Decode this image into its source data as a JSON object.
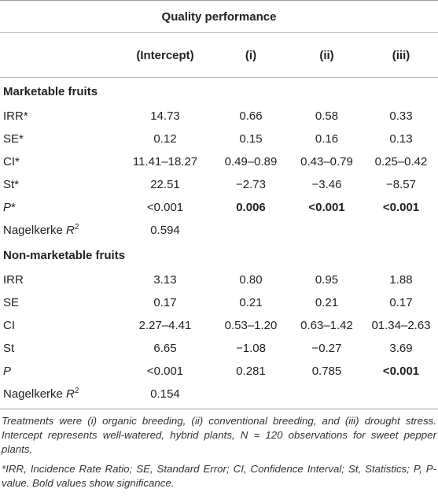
{
  "table": {
    "title": "Quality performance",
    "headers": [
      "",
      "(Intercept)",
      "(i)",
      "(ii)",
      "(iii)"
    ],
    "sections": [
      {
        "name": "Marketable fruits",
        "rows": [
          {
            "label": "IRR*",
            "values": [
              "14.73",
              "0.66",
              "0.58",
              "0.33"
            ]
          },
          {
            "label": "SE*",
            "values": [
              "0.12",
              "0.15",
              "0.16",
              "0.13"
            ]
          },
          {
            "label": "CI*",
            "values": [
              "11.41–18.27",
              "0.49–0.89",
              "0.43–0.79",
              "0.25–0.42"
            ]
          },
          {
            "label": "St*",
            "values": [
              "22.51",
              "−2.73",
              "−3.46",
              "−8.57"
            ]
          },
          {
            "label_main": "P",
            "label_suffix": "*",
            "values": [
              "<0.001",
              "0.006",
              "<0.001",
              "<0.001"
            ],
            "bold": [
              false,
              true,
              true,
              true
            ]
          },
          {
            "label_main": "Nagelkerke ",
            "label_italic": "R",
            "label_sup": "2",
            "values": [
              "0.594",
              "",
              "",
              ""
            ]
          }
        ]
      },
      {
        "name": "Non-marketable fruits",
        "rows": [
          {
            "label": "IRR",
            "values": [
              "3.13",
              "0.80",
              "0.95",
              "1.88"
            ]
          },
          {
            "label": "SE",
            "values": [
              "0.17",
              "0.21",
              "0.21",
              "0.17"
            ]
          },
          {
            "label": "CI",
            "values": [
              "2.27–4.41",
              "0.53–1.20",
              "0.63–1.42",
              "01.34–2.63"
            ]
          },
          {
            "label": "St",
            "values": [
              "6.65",
              "−1.08",
              "−0.27",
              "3.69"
            ]
          },
          {
            "label_main": "P",
            "label_suffix": "",
            "values": [
              "<0.001",
              "0.281",
              "0.785",
              "<0.001"
            ],
            "bold": [
              false,
              false,
              false,
              true
            ]
          },
          {
            "label_main": "Nagelkerke ",
            "label_italic": "R",
            "label_sup": "2",
            "values": [
              "0.154",
              "",
              "",
              ""
            ]
          }
        ]
      }
    ]
  },
  "notes": {
    "note1": "Treatments were (i) organic breeding, (ii) conventional breeding, and (iii) drought stress. Intercept represents well-watered, hybrid plants, N = 120 observations for sweet pepper plants.",
    "note2": "*IRR, Incidence Rate Ratio; SE, Standard Error; CI, Confidence Interval; St, Statistics; P, P-value. Bold values show significance."
  }
}
